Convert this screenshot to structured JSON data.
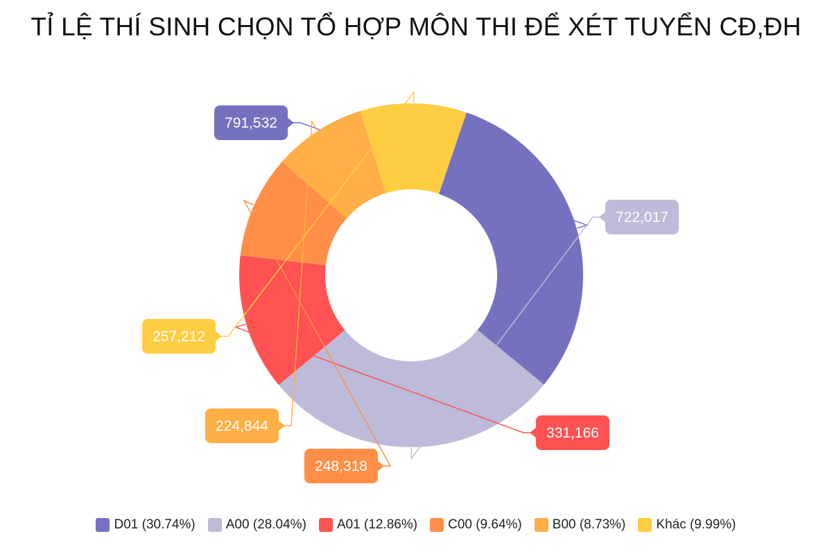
{
  "chart_data": {
    "type": "pie",
    "variant": "donut",
    "title": "TỈ LỆ THÍ SINH CHỌN TỔ HỢP MÔN THI ĐỂ XÉT TUYỂN CĐ,ĐH",
    "legend_position": "bottom",
    "slices": [
      {
        "name": "D01",
        "percent_label": "30.74%",
        "value": 791532,
        "value_label": "791,532",
        "color": "#7571BF"
      },
      {
        "name": "A00",
        "percent_label": "28.04%",
        "value": 722017,
        "value_label": "722,017",
        "color": "#BDBBD9"
      },
      {
        "name": "A01",
        "percent_label": "12.86%",
        "value": 331166,
        "value_label": "331,166",
        "color": "#FF5252"
      },
      {
        "name": "C00",
        "percent_label": "9.64%",
        "value": 248318,
        "value_label": "248,318",
        "color": "#FF8F48"
      },
      {
        "name": "B00",
        "percent_label": "8.73%",
        "value": 224844,
        "value_label": "224,844",
        "color": "#FFAF45"
      },
      {
        "name": "Khác",
        "percent_label": "9.99%",
        "value": 257212,
        "value_label": "257,212",
        "color": "#FFCD42"
      }
    ]
  }
}
